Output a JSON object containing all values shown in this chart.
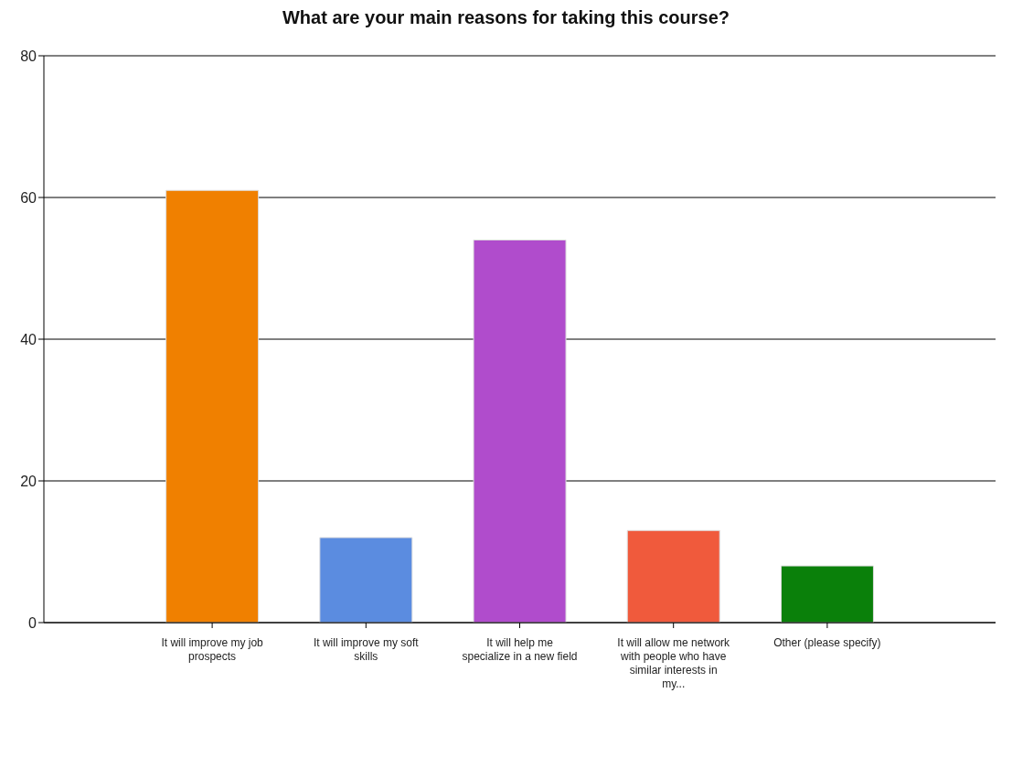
{
  "chart_data": {
    "type": "bar",
    "title": "What are your main reasons for taking this course?",
    "categories": [
      "It will improve my job prospects",
      "It will improve my soft skills",
      "It will help me specialize in a new field",
      "It will allow me network with people who have similar interests in my...",
      "Other (please specify)"
    ],
    "values": [
      61,
      12,
      54,
      13,
      8
    ],
    "colors": [
      "#f08000",
      "#5b8ce0",
      "#b04ccc",
      "#f05a3c",
      "#0a800a"
    ],
    "ylim": [
      0,
      80
    ],
    "yticks": [
      0,
      20,
      40,
      60,
      80
    ],
    "grid": "y"
  }
}
